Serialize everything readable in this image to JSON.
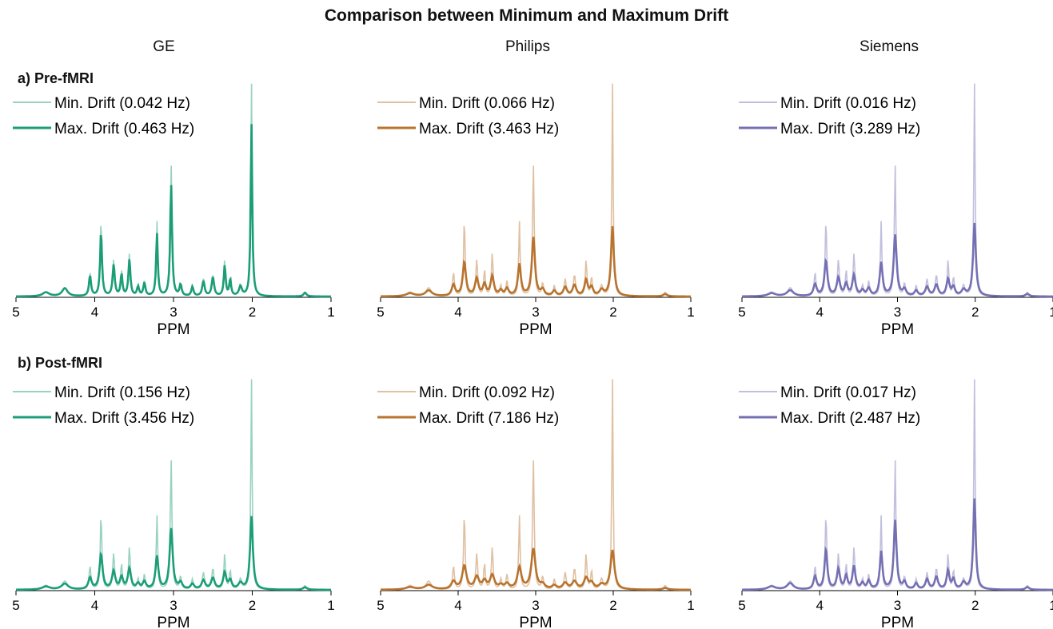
{
  "title": "Comparison between Minimum and Maximum Drift",
  "vendors": [
    "GE",
    "Philips",
    "Siemens"
  ],
  "rows": [
    "a) Pre-fMRI",
    "b) Post-fMRI"
  ],
  "colors": {
    "GE": "#1b9e77",
    "Philips": "#b8732e",
    "Siemens": "#7570b3"
  },
  "chart_data": [
    {
      "type": "line",
      "vendor": "GE",
      "row": "a) Pre-fMRI",
      "xlabel": "PPM",
      "xlim": [
        5,
        1
      ],
      "xticks": [
        "5",
        "4",
        "3",
        "2",
        "1"
      ],
      "legend": [
        "Min. Drift (0.042 Hz)",
        "Max. Drift (0.463 Hz)"
      ],
      "peak_scale": [
        1.0,
        0.97
      ],
      "blur": [
        0,
        0.002
      ]
    },
    {
      "type": "line",
      "vendor": "Philips",
      "row": "a) Pre-fMRI",
      "xlabel": "PPM",
      "xlim": [
        5,
        1
      ],
      "xticks": [
        "5",
        "4",
        "3",
        "2",
        "1"
      ],
      "legend": [
        "Min. Drift (0.066 Hz)",
        "Max. Drift (3.463 Hz)"
      ],
      "peak_scale": [
        1.0,
        0.72
      ],
      "blur": [
        0,
        0.012
      ]
    },
    {
      "type": "line",
      "vendor": "Siemens",
      "row": "a) Pre-fMRI",
      "xlabel": "PPM",
      "xlim": [
        5,
        1
      ],
      "xticks": [
        "5",
        "4",
        "3",
        "2",
        "1"
      ],
      "legend": [
        "Min. Drift (0.016 Hz)",
        "Max. Drift (3.289 Hz)"
      ],
      "peak_scale": [
        1.0,
        0.72
      ],
      "blur": [
        0,
        0.011
      ]
    },
    {
      "type": "line",
      "vendor": "GE",
      "row": "b) Post-fMRI",
      "xlabel": "PPM",
      "xlim": [
        5,
        1
      ],
      "xticks": [
        "5",
        "4",
        "3",
        "2",
        "1"
      ],
      "legend": [
        "Min. Drift (0.156 Hz)",
        "Max. Drift (3.456 Hz)"
      ],
      "peak_scale": [
        1.0,
        0.73
      ],
      "blur": [
        0,
        0.011
      ]
    },
    {
      "type": "line",
      "vendor": "Philips",
      "row": "b) Post-fMRI",
      "xlabel": "PPM",
      "xlim": [
        5,
        1
      ],
      "xticks": [
        "5",
        "4",
        "3",
        "2",
        "1"
      ],
      "legend": [
        "Min. Drift (0.092 Hz)",
        "Max. Drift (7.186 Hz)"
      ],
      "peak_scale": [
        1.0,
        0.56
      ],
      "blur": [
        0,
        0.02
      ]
    },
    {
      "type": "line",
      "vendor": "Siemens",
      "row": "b) Post-fMRI",
      "xlabel": "PPM",
      "xlim": [
        5,
        1
      ],
      "xticks": [
        "5",
        "4",
        "3",
        "2",
        "1"
      ],
      "legend": [
        "Min. Drift (0.017 Hz)",
        "Max. Drift (2.487 Hz)"
      ],
      "peak_scale": [
        1.0,
        0.82
      ],
      "blur": [
        0,
        0.009
      ]
    }
  ]
}
